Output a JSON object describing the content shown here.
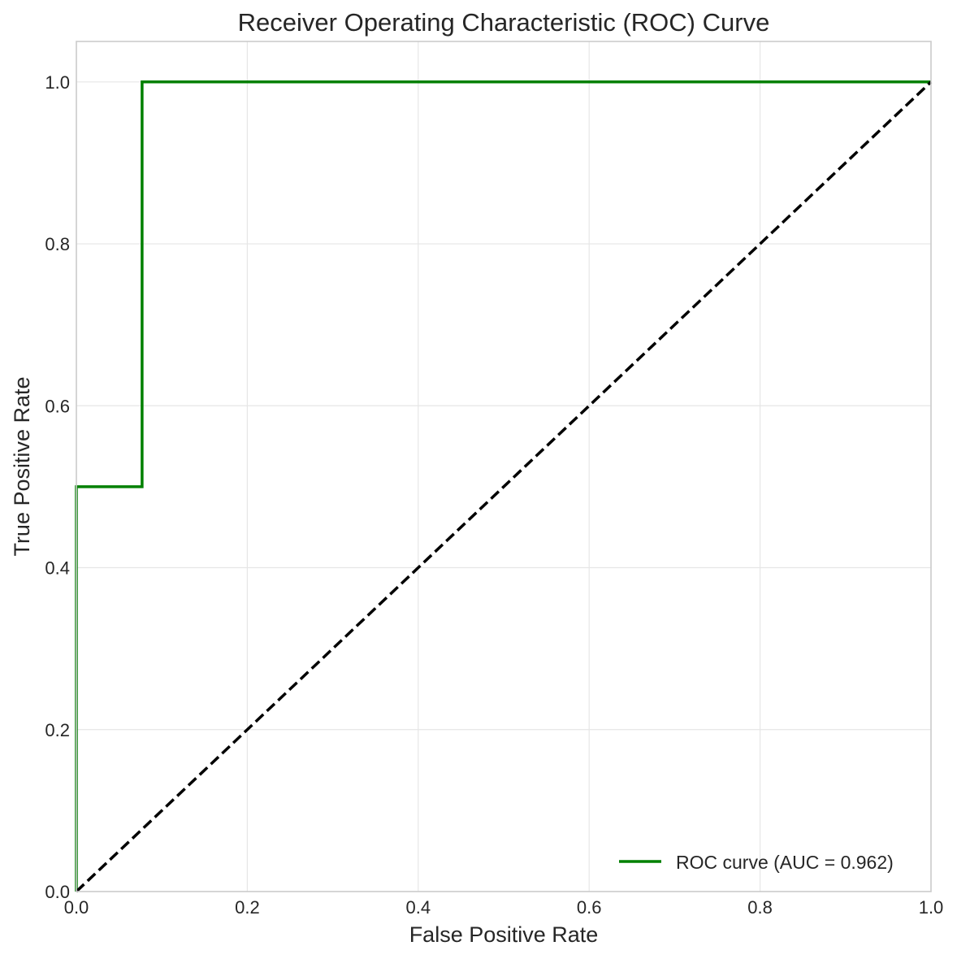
{
  "chart_data": {
    "type": "line",
    "title": "Receiver Operating Characteristic (ROC) Curve",
    "xlabel": "False Positive Rate",
    "ylabel": "True Positive Rate",
    "xlim": [
      0.0,
      1.0
    ],
    "ylim": [
      0.0,
      1.05
    ],
    "x_ticks": [
      "0.0",
      "0.2",
      "0.4",
      "0.6",
      "0.8",
      "1.0"
    ],
    "y_ticks": [
      "0.0",
      "0.2",
      "0.4",
      "0.6",
      "0.8",
      "1.0"
    ],
    "grid": true,
    "legend_position": "bottom-right",
    "series": [
      {
        "name": "ROC curve (AUC = 0.962)",
        "color": "#008000",
        "style": "solid",
        "x": [
          0.0,
          0.0,
          0.0,
          0.0769,
          0.0769,
          1.0
        ],
        "y": [
          0.0,
          0.0,
          0.5,
          0.5,
          1.0,
          1.0
        ]
      },
      {
        "color": "#000000",
        "style": "dashed",
        "x": [
          0.0,
          1.0
        ],
        "y": [
          0.0,
          1.0
        ]
      }
    ]
  }
}
